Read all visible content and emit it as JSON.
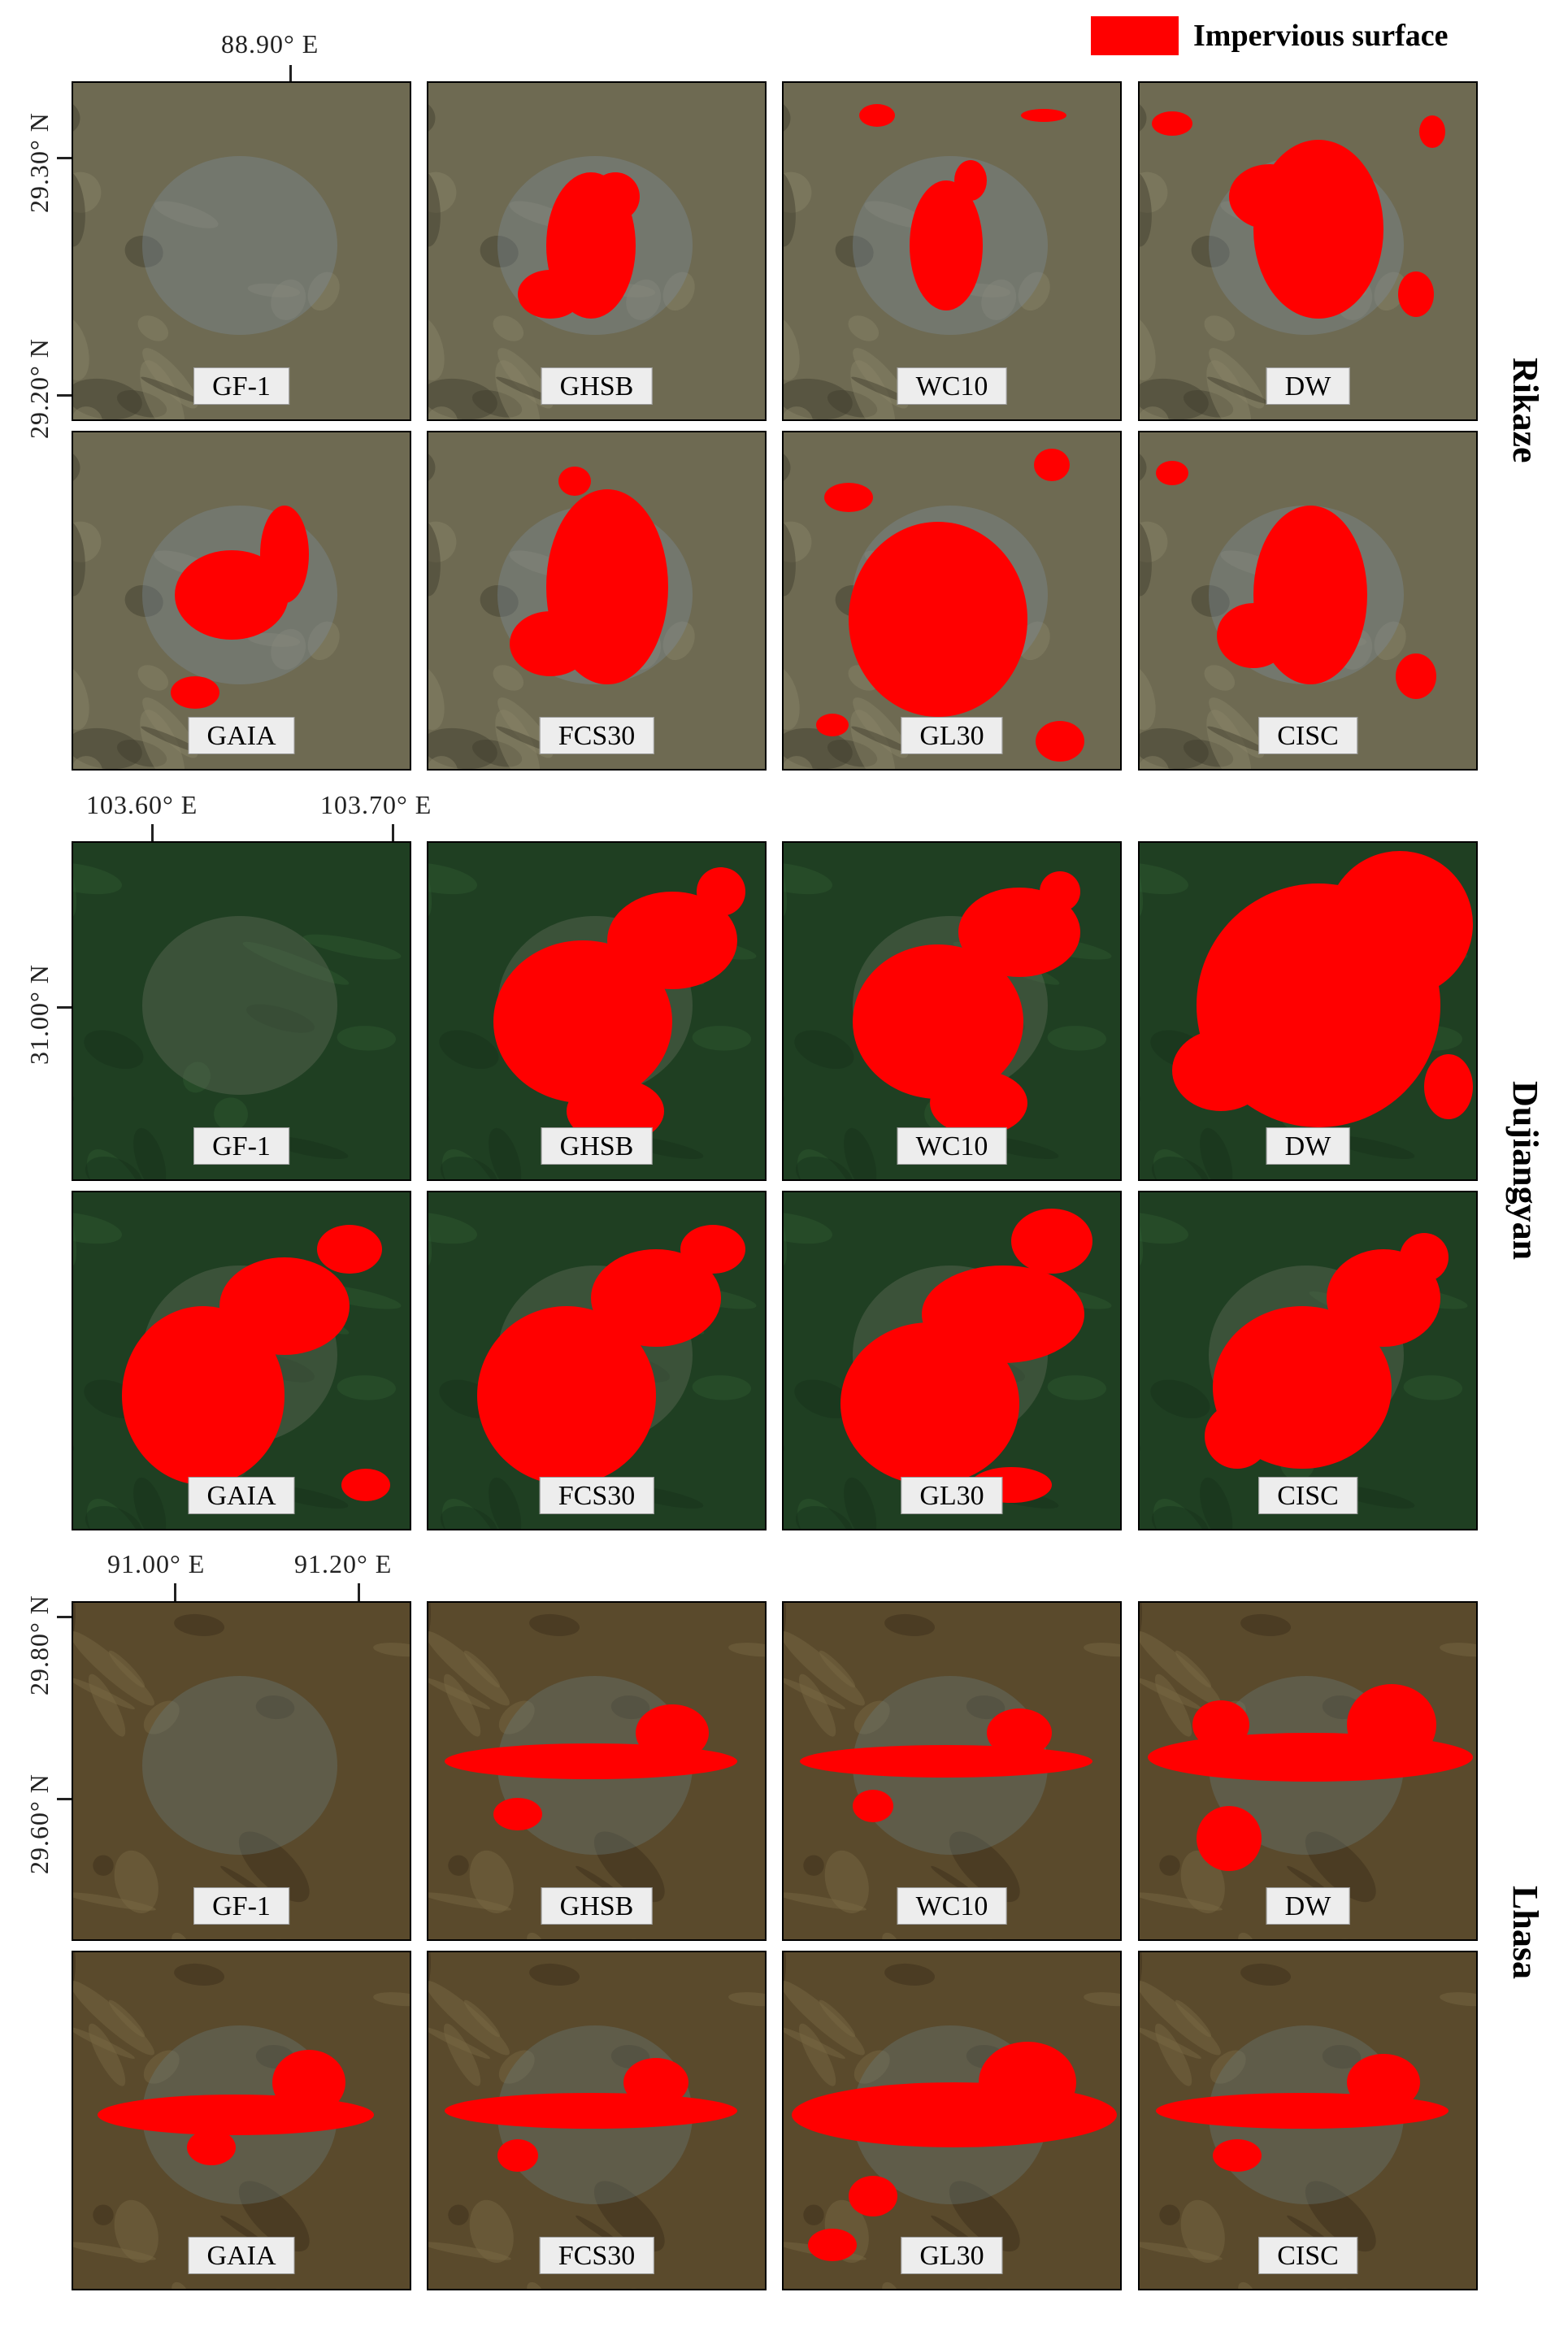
{
  "legend": {
    "label": "Impervious surface",
    "color": "#ff0000"
  },
  "groups": [
    {
      "city": "Rikaze",
      "theme": "arid",
      "lon_labels": [
        "88.90° E"
      ],
      "lat_labels": [
        "29.30° N",
        "29.20° N"
      ],
      "rows": [
        [
          "GF-1",
          "GHSB",
          "WC10",
          "DW"
        ],
        [
          "GAIA",
          "FCS30",
          "GL30",
          "CISC"
        ]
      ]
    },
    {
      "city": "Dujiangyan",
      "theme": "green",
      "lon_labels": [
        "103.60° E",
        "103.70° E"
      ],
      "lat_labels": [
        "31.00° N"
      ],
      "rows": [
        [
          "GF-1",
          "GHSB",
          "WC10",
          "DW"
        ],
        [
          "GAIA",
          "FCS30",
          "GL30",
          "CISC"
        ]
      ]
    },
    {
      "city": "Lhasa",
      "theme": "brown",
      "lon_labels": [
        "91.00° E",
        "91.20° E"
      ],
      "lat_labels": [
        "29.80° N",
        "29.60° N"
      ],
      "rows": [
        [
          "GF-1",
          "GHSB",
          "WC10",
          "DW"
        ],
        [
          "GAIA",
          "FCS30",
          "GL30",
          "CISC"
        ]
      ]
    }
  ],
  "colors": {
    "arid_base": "#6e6a52",
    "green_base": "#1f3f22",
    "brown_base": "#5a4a2c",
    "impervious": "#ff0000"
  }
}
